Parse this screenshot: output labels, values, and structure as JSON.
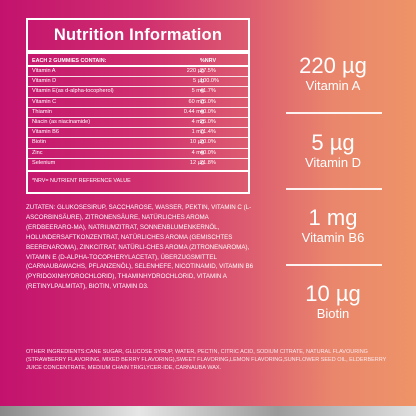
{
  "nutrition": {
    "title": "Nutrition Information",
    "header_label": "EACH 2 GUMMIES CONTAIN:",
    "header_nrv": "%NRV",
    "rows": [
      {
        "name": "Vitamin A",
        "amount": "220 µg",
        "nrv": "27.5%"
      },
      {
        "name": "Vitamin D",
        "amount": "5 µg",
        "nrv": "100.0%"
      },
      {
        "name": "Vitamin E(as d-alpha-tocopherol)",
        "amount": "5 mg",
        "nrv": "41.7%"
      },
      {
        "name": "Vitamin C",
        "amount": "60 mg",
        "nrv": "75.0%"
      },
      {
        "name": "Thiamin",
        "amount": "0.44 mg",
        "nrv": "40.0%"
      },
      {
        "name": "Niacin (as niacinamide)",
        "amount": "4 mg",
        "nrv": "25.0%"
      },
      {
        "name": "Vitamin B6",
        "amount": "1 mg",
        "nrv": "71.4%"
      },
      {
        "name": "Biotin",
        "amount": "10 µg",
        "nrv": "20.0%"
      },
      {
        "name": "Zinc",
        "amount": "4 mg",
        "nrv": "40.0%"
      },
      {
        "name": "Selenium",
        "amount": "12 µg",
        "nrv": "21.8%"
      }
    ],
    "footnote": "*NRV= NUTRIENT REFERENCE VALUE"
  },
  "zutaten": "ZUTATEN: GLUKOSESIRUP, SACCHAROSE, WASSER, PEKTIN, VITAMIN C (L-ASCORBINSÄURE), ZITRONENSÄURE, NATÜRLICHES AROMA (ERDBEERARO-MA), NATRIUMZITRAT, SONNENBLUMENKERNÖL, HOLUNDERSAFTKONZENTRAT, NATÜRLICHES AROMA (GEMISCHTES BEERENAROMA), ZINKCITRAT, NATÜRLI-CHES AROMA (ZITRONENAROMA), VITAMIN E (D-ALPHA-TOCOPHERYLACETAT), ÜBERZUGSMITTEL (CARNAUBAWACHS, PFLANZENÖL), SELENHEFE, NICOTINAMID, VITAMIN B6 (PYRIDOXINHYDROCHLORID), THIAMINHYDROCHLORID, VITAMIN A (RETINYLPALMITAT), BIOTIN, VITAMIN D3.",
  "ingredients": "OTHER INGREDIENTS:CANE SUGAR, GLUCOSE SYRUP, WATER, PECTIN, CITRIC ACID, SODIUM CITRATE, NATURAL FLAVOURING (STRAWBERRY FLAVORING, MIXED BERRY FLAVORING),SWEET FLAVORING,LEMON FLAVORING,SUNFLOWER SEED OIL, ELDERBERRY JUICE CONCENTRATE, MEDIUM CHAIN TRIGLYCER-IDE, CARNAUBA WAX.",
  "callouts": [
    {
      "value": "220 µg",
      "name": "Vitamin A"
    },
    {
      "value": "5 µg",
      "name": "Vitamin D"
    },
    {
      "value": "1 mg",
      "name": "Vitamin B6"
    },
    {
      "value": "10 µg",
      "name": "Biotin"
    }
  ]
}
